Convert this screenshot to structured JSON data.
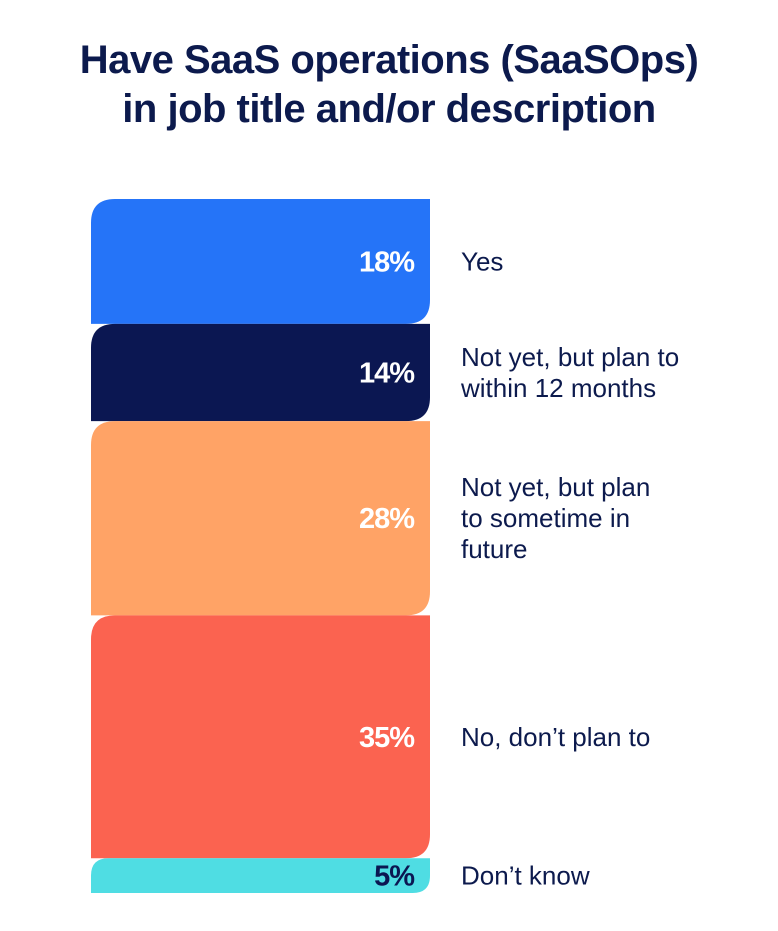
{
  "chart_data": {
    "type": "bar",
    "title_lines": [
      "Have SaaS operations (SaaSOps)",
      "in job title and/or description"
    ],
    "categories": [
      "Yes",
      "Not yet, but plan to within 12 months",
      "Not yet, but plan to sometime in future",
      "No, don’t plan to",
      "Don’t know"
    ],
    "category_lines": [
      [
        "Yes"
      ],
      [
        "Not yet, but plan to",
        "within 12 months"
      ],
      [
        "Not yet, but plan",
        "to sometime in",
        "future"
      ],
      [
        "No, don’t plan to"
      ],
      [
        "Don’t know"
      ]
    ],
    "values": [
      18,
      14,
      28,
      35,
      5
    ],
    "value_labels": [
      "18%",
      "14%",
      "28%",
      "35%",
      "5%"
    ],
    "colors": [
      "#2574f8",
      "#0b1752",
      "#ffa366",
      "#fb6350",
      "#4fdde3"
    ],
    "label_colors": [
      "#ffffff",
      "#ffffff",
      "#ffffff",
      "#ffffff",
      "#0b1752"
    ],
    "stacked": true,
    "grid": false,
    "legend": "none"
  }
}
